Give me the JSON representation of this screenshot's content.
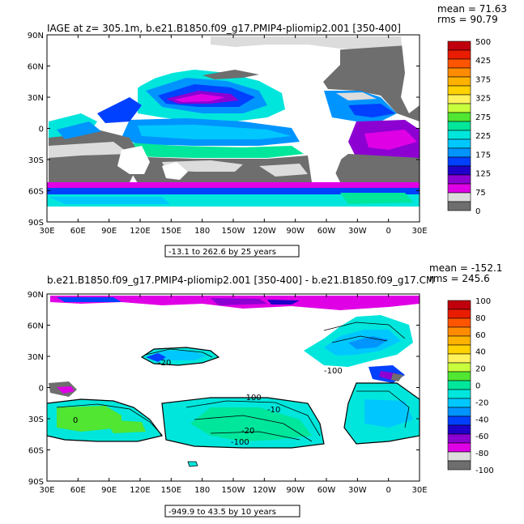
{
  "panels": [
    {
      "title": "IAGE at z= 305.1m, b.e21.B1850.f09_g17.PMIP4-pliomip2.001  [350-400]",
      "stats": {
        "mean": "mean = 71.63",
        "rms": "rms = 90.79"
      },
      "lat_labels": [
        "90N",
        "60N",
        "30N",
        "0",
        "30S",
        "60S",
        "90S"
      ],
      "lon_labels": [
        "30E",
        "60E",
        "90E",
        "120E",
        "150E",
        "180",
        "150W",
        "120W",
        "90W",
        "60W",
        "30W",
        "0",
        "30E"
      ],
      "range_note": "-13.1 to 262.6 by 25 years",
      "colorbar": {
        "labels": [
          "500",
          "425",
          "375",
          "325",
          "275",
          "225",
          "175",
          "125",
          "75",
          "0"
        ],
        "colors": [
          "#c0000c",
          "#ea1c00",
          "#ff5500",
          "#ff8c00",
          "#ffb300",
          "#ffd200",
          "#fff25a",
          "#c8ff3c",
          "#50e632",
          "#00e69b",
          "#00e6dc",
          "#00c8ff",
          "#0094ff",
          "#0040ff",
          "#1e00c8",
          "#8c00d2",
          "#e000e6",
          "#dcdcdc",
          "#6e6e6e"
        ]
      }
    },
    {
      "title": "b.e21.B1850.f09_g17.PMIP4-pliomip2.001  [350-400] - b.e21.B1850.f09_g17.CM",
      "stats": {
        "mean": "mean = -152.1",
        "rms": "rms = 245.6"
      },
      "lat_labels": [
        "90N",
        "60N",
        "30N",
        "0",
        "30S",
        "60S",
        "90S"
      ],
      "lon_labels": [
        "30E",
        "60E",
        "90E",
        "120E",
        "150E",
        "180",
        "150W",
        "120W",
        "90W",
        "60W",
        "30W",
        "0",
        "30E"
      ],
      "range_note": "-949.9 to 43.5 by 10 years",
      "contour_labels": [
        "-20",
        "-100",
        "-100",
        "-10",
        "0",
        "-20",
        "-100"
      ],
      "colorbar": {
        "labels": [
          "100",
          "80",
          "60",
          "40",
          "20",
          "0",
          "-20",
          "-40",
          "-60",
          "-80",
          "-100"
        ],
        "colors": [
          "#c0000c",
          "#ea1c00",
          "#ff5500",
          "#ff8c00",
          "#ffb300",
          "#ffd200",
          "#fff25a",
          "#c8ff3c",
          "#50e632",
          "#00e69b",
          "#00e6dc",
          "#00c8ff",
          "#0094ff",
          "#0040ff",
          "#1e00c8",
          "#8c00d2",
          "#e000e6",
          "#dcdcdc",
          "#6e6e6e"
        ]
      }
    }
  ]
}
